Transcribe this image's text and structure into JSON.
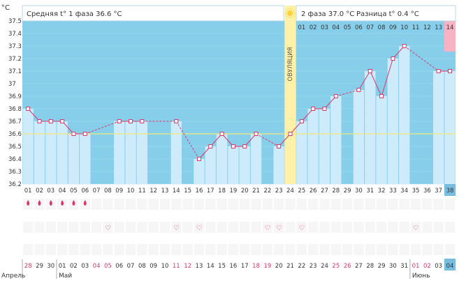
{
  "chart_data": {
    "type": "line",
    "yunit": "°C",
    "ylim": [
      36.2,
      37.5
    ],
    "yticks": [
      "36.2",
      "36.3",
      "36.4",
      "36.5",
      "36.6",
      "36.7",
      "36.8",
      "36.9",
      "37",
      "37.1",
      "37.2",
      "37.3",
      "37.4",
      "37.5"
    ],
    "coverline": 36.6,
    "phase1_label": "Средняя t° 1 фаза 36.6 °C",
    "phase2_label": "2 фаза 37.0 °C",
    "diff_label": "Разница t° 0.4 °C",
    "ovulation_label": "ОВУЛЯЦИЯ",
    "ovulation_day": 24,
    "phase2_counter": [
      "01",
      "02",
      "03",
      "04",
      "05",
      "06",
      "07",
      "08",
      "09",
      "10",
      "11",
      "12",
      "13",
      "14"
    ],
    "cycle_days": [
      "01",
      "02",
      "03",
      "04",
      "05",
      "06",
      "07",
      "08",
      "09",
      "10",
      "11",
      "12",
      "13",
      "14",
      "15",
      "16",
      "17",
      "18",
      "19",
      "20",
      "21",
      "22",
      "23",
      "24",
      "25",
      "26",
      "27",
      "28",
      "29",
      "30",
      "31",
      "32",
      "33",
      "34",
      "35",
      "36",
      "37",
      "38"
    ],
    "current_day_index": 38,
    "temperatures": [
      36.8,
      36.7,
      36.7,
      36.7,
      36.6,
      36.6,
      null,
      null,
      36.7,
      36.7,
      36.7,
      null,
      null,
      36.7,
      null,
      36.4,
      36.5,
      36.6,
      36.5,
      36.5,
      36.6,
      null,
      36.5,
      36.6,
      36.7,
      36.8,
      36.8,
      36.9,
      null,
      36.95,
      37.1,
      36.9,
      37.2,
      37.3,
      null,
      null,
      37.1,
      37.1
    ],
    "bleeding_days": [
      1,
      2,
      3,
      4,
      5,
      6
    ],
    "bleeding_symbol": "🩸",
    "heart_days": [
      8,
      14,
      16,
      22,
      23,
      25,
      35
    ],
    "heart_symbol": "♡",
    "dates": [
      "28",
      "29",
      "30",
      "01",
      "02",
      "03",
      "04",
      "05",
      "06",
      "07",
      "08",
      "09",
      "10",
      "11",
      "12",
      "13",
      "14",
      "15",
      "16",
      "17",
      "18",
      "19",
      "20",
      "21",
      "22",
      "23",
      "24",
      "25",
      "26",
      "27",
      "28",
      "29",
      "30",
      "31",
      "01",
      "02",
      "03",
      "04"
    ],
    "weekend_dates": [
      1,
      7,
      8,
      14,
      15,
      21,
      22,
      28,
      29,
      35,
      36
    ],
    "months": [
      {
        "label": "Апрель",
        "start": 1
      },
      {
        "label": "Май",
        "start": 4
      },
      {
        "label": "Июнь",
        "start": 35
      }
    ],
    "today_date_index": 38,
    "colors": {
      "background": "#87ceeb",
      "bar": "#cdebfb",
      "line": "#d9386a",
      "ovulation": "#fff2a8",
      "today": "#f7b3c4",
      "current_cell": "#77bde0",
      "weekend": "#d9386a"
    }
  }
}
